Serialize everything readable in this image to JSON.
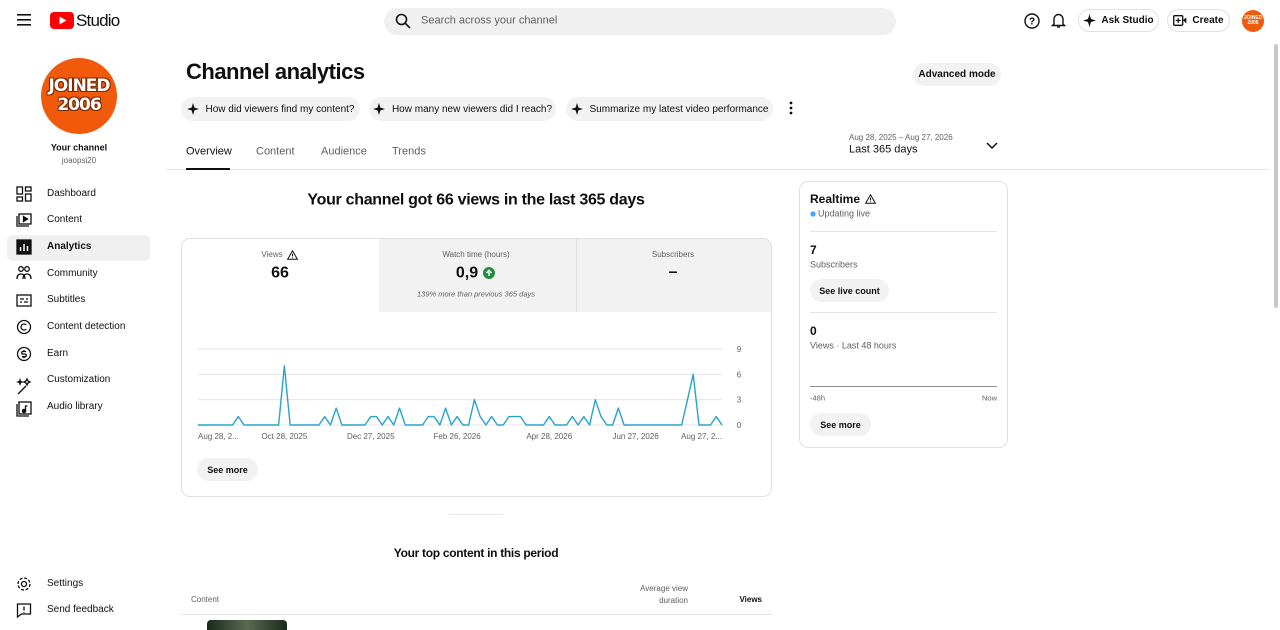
{
  "header": {
    "logo": "Studio",
    "search": "Search across your channel",
    "ask": "Ask Studio",
    "create": "Create"
  },
  "avatar": {
    "line1": "JOINED",
    "line2": "2006"
  },
  "sidebar": {
    "channel_label": "Your channel",
    "handle": "joaopsi20",
    "nav": [
      "Dashboard",
      "Content",
      "Analytics",
      "Community",
      "Subtitles",
      "Content detection",
      "Earn",
      "Customization",
      "Audio library"
    ],
    "bottom": [
      "Settings",
      "Send feedback"
    ]
  },
  "main": {
    "title": "Channel analytics",
    "advanced": "Advanced mode",
    "prompts": [
      "How did viewers find my content?",
      "How many new viewers did I reach?",
      "Summarize my latest video performance"
    ],
    "tabs": [
      "Overview",
      "Content",
      "Audience",
      "Trends"
    ],
    "date_range": "Aug 28, 2025 – Aug 27, 2026",
    "period": "Last 365 days",
    "summary": "Your channel got 66 views in the last 365 days",
    "metrics": [
      {
        "label": "Views",
        "value": "66"
      },
      {
        "label": "Watch time (hours)",
        "value": "0,9",
        "note": "139% more than previous 365 days"
      },
      {
        "label": "Subscribers",
        "value": "–"
      }
    ],
    "see_more": "See more",
    "top_title": "Your top content in this period",
    "table_headers": [
      "Content",
      "Average view duration",
      "Views"
    ]
  },
  "realtime": {
    "title": "Realtime",
    "status": "Updating live",
    "subscribers": "7",
    "subscribers_label": "Subscribers",
    "live_button": "See live count",
    "views": "0",
    "views_label": "Views · Last 48 hours",
    "start": "-48h",
    "end": "Now",
    "see_more": "See more"
  },
  "chart_data": {
    "type": "line",
    "color": "#29a3cc",
    "xlim": [
      0,
      91
    ],
    "xticks": [
      {
        "value": 0,
        "label": "Aug 28, 2..."
      },
      {
        "value": 15,
        "label": "Oct 28, 2025"
      },
      {
        "value": 30,
        "label": "Dec 27, 2025"
      },
      {
        "value": 45,
        "label": "Feb 26, 2026"
      },
      {
        "value": 61,
        "label": "Apr 28, 2026"
      },
      {
        "value": 76,
        "label": "Jun 27, 2026"
      },
      {
        "value": 91,
        "label": "Aug 27, 2..."
      }
    ],
    "ylim": [
      0,
      9
    ],
    "yticks": [
      0,
      3,
      6,
      9
    ],
    "grid": true,
    "values": [
      0,
      0,
      0,
      0,
      0,
      0,
      0,
      1,
      0,
      0,
      0,
      0,
      0,
      0,
      0,
      7,
      0,
      0,
      0,
      0,
      0,
      0,
      1,
      0,
      2,
      0,
      0,
      0,
      0,
      0,
      1,
      1,
      0,
      1,
      0,
      2,
      0,
      0,
      0,
      0,
      1,
      1,
      0,
      2,
      0,
      1,
      0,
      0,
      3,
      1,
      0,
      1,
      0,
      0,
      1,
      1,
      1,
      0,
      0,
      0,
      0,
      1,
      0,
      0,
      0,
      1,
      0,
      1,
      0,
      3,
      1,
      0,
      0,
      2,
      0,
      0,
      0,
      0,
      0,
      0,
      0,
      0,
      0,
      0,
      0,
      3,
      6,
      0,
      0,
      0,
      1,
      0
    ]
  }
}
